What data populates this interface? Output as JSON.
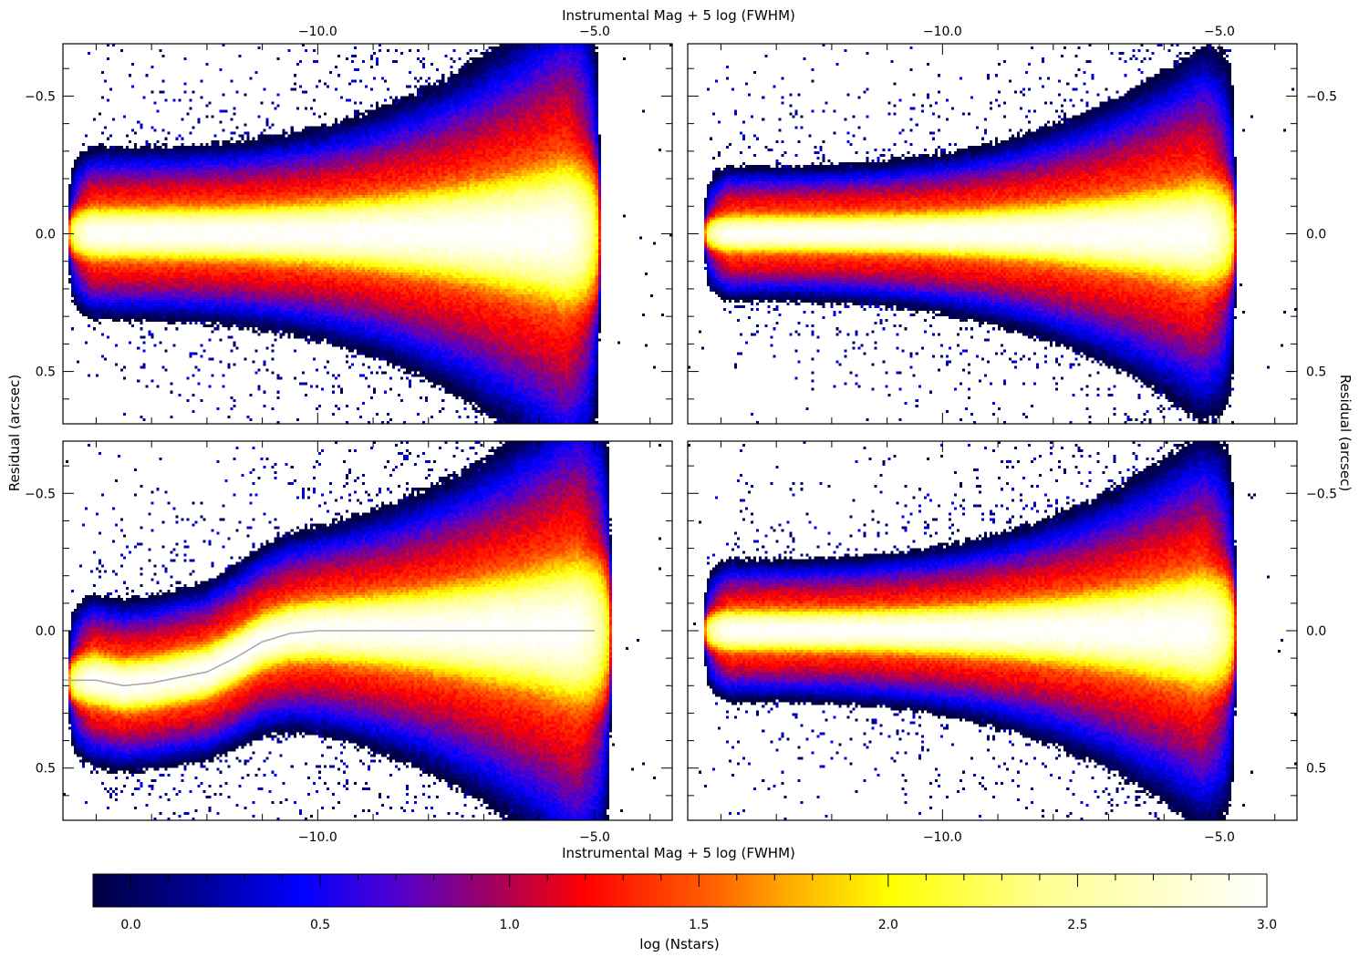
{
  "chart_data": {
    "type": "heatmap",
    "xlabel": "Instrumental Mag + 5 log (FWHM)",
    "ylabel": "Residual (arcsec)",
    "xlim": [
      -14.6,
      -3.6
    ],
    "ylim": [
      -0.69,
      0.69
    ],
    "y_axis_inverted": true,
    "x_ticks": [
      -10.0,
      -5.0
    ],
    "x_tick_labels": [
      "−10.0",
      "−5.0"
    ],
    "y_ticks": [
      -0.5,
      0.0,
      0.5
    ],
    "y_tick_labels": [
      "−0.5",
      "0.0",
      "0.5"
    ],
    "grid": false,
    "panels": [
      {
        "position": "top-left",
        "mag_start": -14.5,
        "mag_end": -4.9,
        "core_width": 0.035,
        "wing_width": 0.11,
        "mag_peak": -10.0
      },
      {
        "position": "top-right",
        "mag_start": -14.3,
        "mag_end": -4.7,
        "core_width": 0.025,
        "wing_width": 0.085,
        "mag_peak": -8.5
      },
      {
        "position": "bottom-left",
        "mag_start": -14.5,
        "mag_end": -4.7,
        "core_width": 0.035,
        "wing_width": 0.11,
        "mag_peak": -10.0,
        "trend_line": {
          "x": [
            -14.6,
            -14.0,
            -13.5,
            -13.0,
            -12.5,
            -12.0,
            -11.5,
            -11.0,
            -10.5,
            -10.0,
            -9.0,
            -8.0,
            -7.0,
            -6.0,
            -5.0
          ],
          "y": [
            0.18,
            0.18,
            0.2,
            0.19,
            0.17,
            0.15,
            0.1,
            0.04,
            0.01,
            0.0,
            0.0,
            0.0,
            0.0,
            0.0,
            0.0
          ]
        }
      },
      {
        "position": "bottom-right",
        "mag_start": -14.3,
        "mag_end": -4.7,
        "core_width": 0.028,
        "wing_width": 0.09,
        "mag_peak": -8.5
      }
    ],
    "colorbar": {
      "label": "log (Nstars)",
      "range": [
        -0.1,
        3.0
      ],
      "ticks": [
        0.0,
        0.5,
        1.0,
        1.5,
        2.0,
        2.5,
        3.0
      ],
      "tick_labels": [
        "0.0",
        "0.5",
        "1.0",
        "1.5",
        "2.0",
        "2.5",
        "3.0"
      ],
      "colormap": [
        {
          "v": -0.1,
          "c": "#000040"
        },
        {
          "v": 0.15,
          "c": "#00008c"
        },
        {
          "v": 0.45,
          "c": "#0000ff"
        },
        {
          "v": 0.7,
          "c": "#5000d0"
        },
        {
          "v": 0.95,
          "c": "#a00060"
        },
        {
          "v": 1.2,
          "c": "#ff0000"
        },
        {
          "v": 1.55,
          "c": "#ff6600"
        },
        {
          "v": 1.75,
          "c": "#ffb000"
        },
        {
          "v": 2.0,
          "c": "#ffff00"
        },
        {
          "v": 2.4,
          "c": "#ffff90"
        },
        {
          "v": 3.0,
          "c": "#ffffff"
        }
      ]
    }
  }
}
